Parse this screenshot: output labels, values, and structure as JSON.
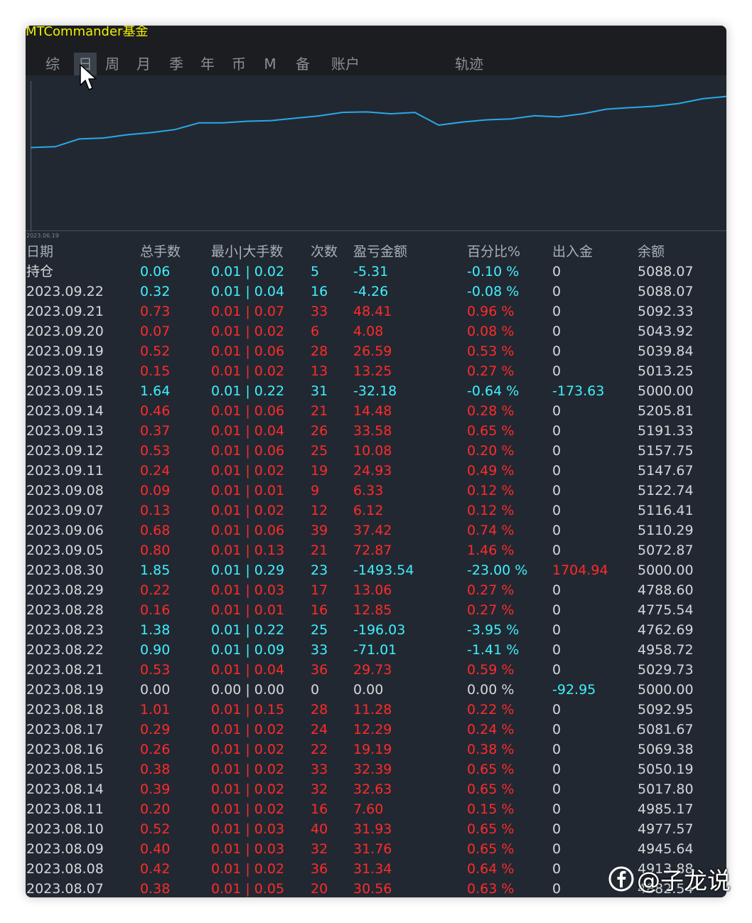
{
  "app": {
    "title": "MTCommander基金"
  },
  "tabs": [
    {
      "label": "综",
      "active": false
    },
    {
      "label": "日",
      "active": true
    },
    {
      "label": "周",
      "active": false
    },
    {
      "label": "月",
      "active": false
    },
    {
      "label": "季",
      "active": false
    },
    {
      "label": "年",
      "active": false
    },
    {
      "label": "币",
      "active": false
    },
    {
      "label": "M",
      "active": false
    },
    {
      "label": "备",
      "active": false
    },
    {
      "label": "账户",
      "active": false
    },
    {
      "label": "轨迹",
      "active": false
    }
  ],
  "chart_data": {
    "type": "line",
    "x_start_label": "2023.06.19",
    "series": [
      {
        "color": "#2aa8e8",
        "values": [
          4960.8,
          4962.9,
          4982.7,
          4985.0,
          4993.3,
          4998.9,
          5006.6,
          5023.7,
          5023.6,
          5027.8,
          5029.3,
          5035.3,
          5041.4,
          5050.3,
          5051.5,
          5046.8,
          5050.2,
          5017.8,
          5025.7,
          5031.4,
          5033.5,
          5041.9,
          5038.8,
          5046.7,
          5058.6,
          5062.5,
          5066.0,
          5072.9,
          5085.0,
          5090.9
        ]
      }
    ],
    "line_color": "#2aa8e8",
    "grid": false,
    "legend": "none"
  },
  "table": {
    "headers": [
      "日期",
      "总手数",
      "最小|大手数",
      "次数",
      "盈亏金额",
      "百分比%",
      "出入金",
      "余额"
    ],
    "rows": [
      [
        "持仓",
        "0.06",
        "0.01 | 0.02",
        "5",
        "-5.31",
        "-0.10 %",
        "0",
        "5088.07",
        "cyan",
        "white"
      ],
      [
        "2023.09.22",
        "0.32",
        "0.01 | 0.04",
        "16",
        "-4.26",
        "-0.08 %",
        "0",
        "5088.07",
        "cyan",
        "white"
      ],
      [
        "2023.09.21",
        "0.73",
        "0.01 | 0.07",
        "33",
        "48.41",
        "0.96 %",
        "0",
        "5092.33",
        "red",
        "white"
      ],
      [
        "2023.09.20",
        "0.07",
        "0.01 | 0.02",
        "6",
        "4.08",
        "0.08 %",
        "0",
        "5043.92",
        "red",
        "white"
      ],
      [
        "2023.09.19",
        "0.52",
        "0.01 | 0.06",
        "28",
        "26.59",
        "0.53 %",
        "0",
        "5039.84",
        "red",
        "white"
      ],
      [
        "2023.09.18",
        "0.15",
        "0.01 | 0.02",
        "13",
        "13.25",
        "0.27 %",
        "0",
        "5013.25",
        "red",
        "white"
      ],
      [
        "2023.09.15",
        "1.64",
        "0.01 | 0.22",
        "31",
        "-32.18",
        "-0.64 %",
        "-173.63",
        "5000.00",
        "cyan",
        "cyan"
      ],
      [
        "2023.09.14",
        "0.46",
        "0.01 | 0.06",
        "21",
        "14.48",
        "0.28 %",
        "0",
        "5205.81",
        "red",
        "white"
      ],
      [
        "2023.09.13",
        "0.37",
        "0.01 | 0.04",
        "26",
        "33.58",
        "0.65 %",
        "0",
        "5191.33",
        "red",
        "white"
      ],
      [
        "2023.09.12",
        "0.53",
        "0.01 | 0.06",
        "25",
        "10.08",
        "0.20 %",
        "0",
        "5157.75",
        "red",
        "white"
      ],
      [
        "2023.09.11",
        "0.24",
        "0.01 | 0.02",
        "19",
        "24.93",
        "0.49 %",
        "0",
        "5147.67",
        "red",
        "white"
      ],
      [
        "2023.09.08",
        "0.09",
        "0.01 | 0.01",
        "9",
        "6.33",
        "0.12 %",
        "0",
        "5122.74",
        "red",
        "white"
      ],
      [
        "2023.09.07",
        "0.13",
        "0.01 | 0.02",
        "12",
        "6.12",
        "0.12 %",
        "0",
        "5116.41",
        "red",
        "white"
      ],
      [
        "2023.09.06",
        "0.68",
        "0.01 | 0.06",
        "39",
        "37.42",
        "0.74 %",
        "0",
        "5110.29",
        "red",
        "white"
      ],
      [
        "2023.09.05",
        "0.80",
        "0.01 | 0.13",
        "21",
        "72.87",
        "1.46 %",
        "0",
        "5072.87",
        "red",
        "white"
      ],
      [
        "2023.08.30",
        "1.85",
        "0.01 | 0.29",
        "23",
        "-1493.54",
        "-23.00 %",
        "1704.94",
        "5000.00",
        "cyan",
        "red"
      ],
      [
        "2023.08.29",
        "0.22",
        "0.01 | 0.03",
        "17",
        "13.06",
        "0.27 %",
        "0",
        "4788.60",
        "red",
        "white"
      ],
      [
        "2023.08.28",
        "0.16",
        "0.01 | 0.01",
        "16",
        "12.85",
        "0.27 %",
        "0",
        "4775.54",
        "red",
        "white"
      ],
      [
        "2023.08.23",
        "1.38",
        "0.01 | 0.22",
        "25",
        "-196.03",
        "-3.95 %",
        "0",
        "4762.69",
        "cyan",
        "white"
      ],
      [
        "2023.08.22",
        "0.90",
        "0.01 | 0.09",
        "33",
        "-71.01",
        "-1.41 %",
        "0",
        "4958.72",
        "cyan",
        "white"
      ],
      [
        "2023.08.21",
        "0.53",
        "0.01 | 0.04",
        "36",
        "29.73",
        "0.59 %",
        "0",
        "5029.73",
        "red",
        "white"
      ],
      [
        "2023.08.19",
        "0.00",
        "0.00 | 0.00",
        "0",
        "0.00",
        "0.00 %",
        "-92.95",
        "5000.00",
        "white",
        "cyan"
      ],
      [
        "2023.08.18",
        "1.01",
        "0.01 | 0.15",
        "28",
        "11.28",
        "0.22 %",
        "0",
        "5092.95",
        "red",
        "white"
      ],
      [
        "2023.08.17",
        "0.29",
        "0.01 | 0.02",
        "24",
        "12.29",
        "0.24 %",
        "0",
        "5081.67",
        "red",
        "white"
      ],
      [
        "2023.08.16",
        "0.26",
        "0.01 | 0.02",
        "22",
        "19.19",
        "0.38 %",
        "0",
        "5069.38",
        "red",
        "white"
      ],
      [
        "2023.08.15",
        "0.38",
        "0.01 | 0.02",
        "33",
        "32.39",
        "0.65 %",
        "0",
        "5050.19",
        "red",
        "white"
      ],
      [
        "2023.08.14",
        "0.39",
        "0.01 | 0.02",
        "32",
        "32.63",
        "0.65 %",
        "0",
        "5017.80",
        "red",
        "white"
      ],
      [
        "2023.08.11",
        "0.20",
        "0.01 | 0.02",
        "16",
        "7.60",
        "0.15 %",
        "0",
        "4985.17",
        "red",
        "white"
      ],
      [
        "2023.08.10",
        "0.52",
        "0.01 | 0.03",
        "40",
        "31.93",
        "0.65 %",
        "0",
        "4977.57",
        "red",
        "white"
      ],
      [
        "2023.08.09",
        "0.40",
        "0.01 | 0.03",
        "32",
        "31.76",
        "0.65 %",
        "0",
        "4945.64",
        "red",
        "white"
      ],
      [
        "2023.08.08",
        "0.42",
        "0.01 | 0.02",
        "36",
        "31.34",
        "0.64 %",
        "0",
        "4913.88",
        "red",
        "white"
      ],
      [
        "2023.08.07",
        "0.38",
        "0.01 | 0.05",
        "20",
        "30.56",
        "0.63 %",
        "0",
        "4882.54",
        "red",
        "white"
      ]
    ]
  },
  "watermark": {
    "text": "@子龙说",
    "icon": "facebook-icon"
  }
}
